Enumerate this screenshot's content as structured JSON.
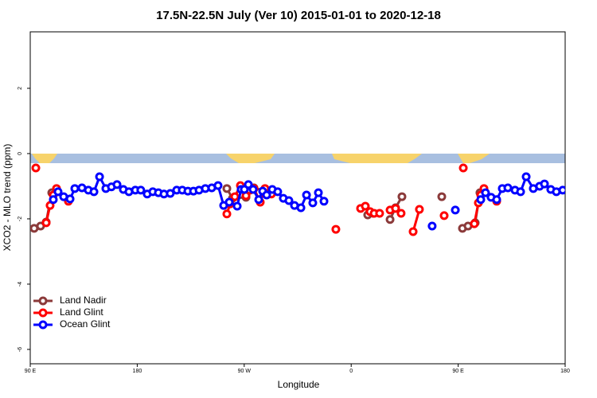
{
  "chart_data": {
    "type": "line",
    "title": "17.5N-22.5N July (Ver 10)   2015-01-01 to 2020-12-18",
    "x_label": "Longitude",
    "y_label": "XCO2 - MLO trend (ppm)",
    "xlim": [
      90,
      540
    ],
    "xticks": [
      {
        "value": 90,
        "label": "90 E"
      },
      180,
      {
        "value": 270,
        "label": "90 W"
      },
      {
        "value": 360,
        "label": "0"
      },
      {
        "value": 450,
        "label": "90 E"
      },
      {
        "value": 540,
        "label": "180"
      }
    ],
    "ylim": [
      -6.44,
      3.73
    ],
    "yticks": [
      -6,
      -4,
      -2,
      0,
      2
    ],
    "legend": "bottomleft",
    "series": [
      {
        "name": "Land Nadir",
        "color": "#8b3a3a",
        "x": [
          93.3,
          98.7,
          103.4,
          108.1,
          null,
          255.4,
          260.1,
          271.5,
          278.2,
          288.2,
          null,
          373.9,
          378.6,
          null,
          392.7,
          397.3,
          402.7,
          null,
          436.2,
          null,
          453.6,
          458.3,
          464.3,
          468.3
        ],
        "values": [
          -2.29,
          -2.22,
          -2.1,
          -1.2,
          null,
          -1.07,
          -1.37,
          -1.34,
          -1.05,
          -1.15,
          null,
          -1.88,
          -1.83,
          null,
          -2.02,
          -1.66,
          -1.32,
          null,
          -1.32,
          null,
          -2.29,
          -2.22,
          -2.12,
          -1.2
        ]
      },
      {
        "name": "Land Glint",
        "color": "#ff0000",
        "x": [
          94.7,
          null,
          103.4,
          106.7,
          109.4,
          112.1,
          122.1,
          null,
          255.4,
          258.1,
          262.1,
          266.8,
          271.5,
          274.8,
          278.2,
          283.5,
          287.5,
          292.9,
          null,
          347.1,
          null,
          367.9,
          371.9,
          375.9,
          379.3,
          383.9,
          null,
          392.7,
          397.3,
          402.0,
          null,
          412.1,
          417.4,
          null,
          438.2,
          null,
          454.3,
          null,
          463.6,
          467.0,
          469.0,
          471.7,
          482.4
        ],
        "values": [
          -0.44,
          null,
          -2.12,
          -1.59,
          -1.27,
          -1.07,
          -1.46,
          null,
          -1.85,
          -1.54,
          -1.32,
          -0.98,
          -1.29,
          -1.12,
          -1.07,
          -1.49,
          -1.07,
          -1.24,
          null,
          -2.32,
          null,
          -1.68,
          -1.61,
          -1.78,
          -1.83,
          -1.83,
          null,
          -1.73,
          -1.68,
          -1.83,
          null,
          -2.39,
          -1.71,
          null,
          -1.9,
          null,
          -0.44,
          null,
          -2.15,
          -1.51,
          -1.27,
          -1.07,
          -1.46
        ]
      },
      {
        "name": "Ocean Glint",
        "color": "#0000ff",
        "x": [
          109.4,
          113.4,
          118.1,
          123.5,
          127.5,
          133.5,
          138.9,
          143.6,
          148.3,
          153.6,
          158.3,
          163.0,
          168.3,
          173.0,
          178.4,
          183.0,
          188.4,
          193.1,
          197.8,
          202.5,
          207.8,
          213.2,
          217.9,
          222.6,
          227.3,
          232.0,
          237.3,
          242.7,
          248.0,
          252.7,
          257.4,
          264.1,
          267.4,
          270.1,
          273.5,
          277.5,
          282.2,
          285.5,
          288.9,
          293.6,
          298.2,
          302.9,
          307.6,
          312.3,
          317.7,
          322.4,
          327.7,
          332.4,
          337.1,
          null,
          428.1,
          null,
          447.6,
          null,
          469.0,
          473.0,
          477.7,
          482.4,
          487.1,
          491.8,
          497.8,
          502.5,
          507.2,
          513.2,
          518.5,
          522.6,
          527.9,
          532.6,
          538.0
        ],
        "values": [
          -1.41,
          -1.17,
          -1.32,
          -1.39,
          -1.07,
          -1.05,
          -1.12,
          -1.17,
          -0.71,
          -1.07,
          -1.02,
          -0.95,
          -1.1,
          -1.17,
          -1.12,
          -1.12,
          -1.24,
          -1.17,
          -1.2,
          -1.24,
          -1.22,
          -1.12,
          -1.12,
          -1.15,
          -1.15,
          -1.12,
          -1.07,
          -1.05,
          -0.98,
          -1.59,
          -1.49,
          -1.61,
          -1.1,
          -1.1,
          -0.95,
          -1.1,
          -1.41,
          -1.15,
          -1.27,
          -1.1,
          -1.17,
          -1.37,
          -1.44,
          -1.59,
          -1.66,
          -1.27,
          -1.51,
          -1.2,
          -1.46,
          null,
          -2.22,
          null,
          -1.73,
          null,
          -1.41,
          -1.2,
          -1.34,
          -1.41,
          -1.07,
          -1.05,
          -1.12,
          -1.17,
          -0.71,
          -1.07,
          -1.0,
          -0.93,
          -1.1,
          -1.17,
          -1.12
        ]
      }
    ]
  }
}
